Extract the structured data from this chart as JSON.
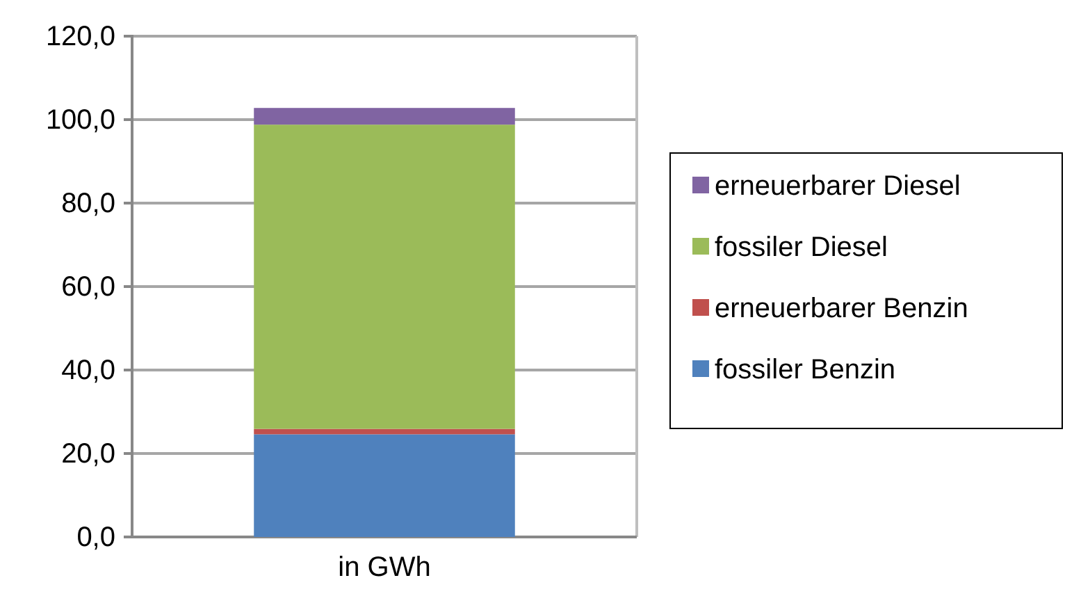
{
  "chart_data": {
    "type": "bar",
    "stacked": true,
    "categories": [
      "in GWh"
    ],
    "series": [
      {
        "name": "fossiler Benzin",
        "color": "#4f81bd",
        "values": [
          24.6
        ]
      },
      {
        "name": "erneuerbarer Benzin",
        "color": "#c0504d",
        "values": [
          1.3
        ]
      },
      {
        "name": "fossiler Diesel",
        "color": "#9bbb59",
        "values": [
          72.9
        ]
      },
      {
        "name": "erneuerbarer Diesel",
        "color": "#8064a2",
        "values": [
          4.0
        ]
      }
    ],
    "ylim": [
      0,
      120
    ],
    "yticks": [
      {
        "value": 0,
        "label": "0,0"
      },
      {
        "value": 20,
        "label": "20,0"
      },
      {
        "value": 40,
        "label": "40,0"
      },
      {
        "value": 60,
        "label": "60,0"
      },
      {
        "value": 80,
        "label": "80,0"
      },
      {
        "value": 100,
        "label": "100,0"
      },
      {
        "value": 120,
        "label": "120,0"
      }
    ],
    "grid": "y",
    "legend": "right"
  }
}
